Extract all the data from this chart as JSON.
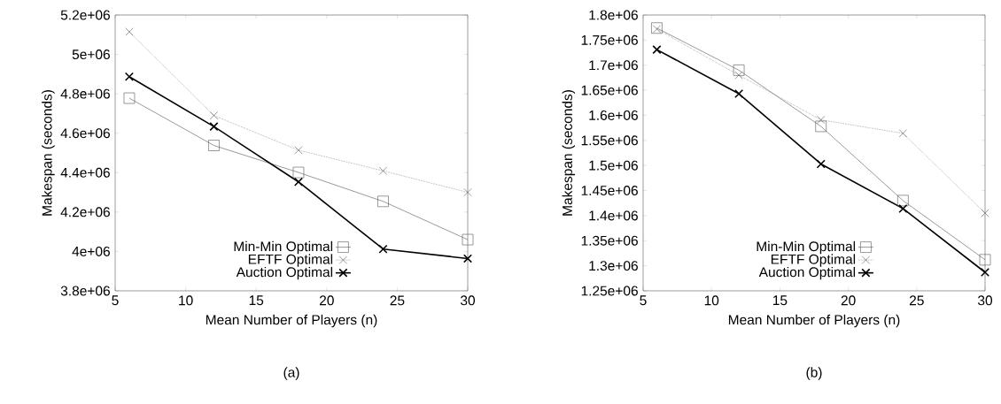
{
  "chart_data": [
    {
      "type": "line",
      "xlabel": "Mean Number of Players (n)",
      "ylabel": "Makespan (seconds)",
      "annotations": [
        "(a)"
      ],
      "x": [
        6,
        12,
        18,
        24,
        30
      ],
      "xlim": [
        5,
        30
      ],
      "xticks": [
        5,
        10,
        15,
        20,
        25,
        30
      ],
      "ylim": [
        3800000,
        5200000
      ],
      "yticks": [
        {
          "value": 3800000,
          "label": "3.8e+06"
        },
        {
          "value": 4000000,
          "label": "4e+06"
        },
        {
          "value": 4200000,
          "label": "4.2e+06"
        },
        {
          "value": 4400000,
          "label": "4.4e+06"
        },
        {
          "value": 4600000,
          "label": "4.6e+06"
        },
        {
          "value": 4800000,
          "label": "4.8e+06"
        },
        {
          "value": 5000000,
          "label": "5e+06"
        },
        {
          "value": 5200000,
          "label": "5.2e+06"
        }
      ],
      "legend": "bottom",
      "grid": false,
      "series": [
        {
          "name": "Min-Min Optimal",
          "color": "#555555",
          "marker": "square",
          "line_style": "solid",
          "values": [
            4778000,
            4538000,
            4401000,
            4254000,
            4060000
          ]
        },
        {
          "name": "EFTF Optimal",
          "color": "#555555",
          "marker": "cross",
          "line_style": "dotted",
          "values": [
            5115000,
            4690000,
            4514000,
            4409000,
            4300000
          ]
        },
        {
          "name": "Auction Optimal",
          "color": "#000000",
          "marker": "cross",
          "line_style": "solid",
          "values": [
            4887000,
            4634000,
            4353000,
            4012000,
            3964000
          ]
        }
      ]
    },
    {
      "type": "line",
      "xlabel": "Mean Number of Players (n)",
      "ylabel": "Makespan (seconds)",
      "annotations": [
        "(b)"
      ],
      "x": [
        6,
        12,
        18,
        24,
        30
      ],
      "xlim": [
        5,
        30
      ],
      "xticks": [
        5,
        10,
        15,
        20,
        25,
        30
      ],
      "ylim": [
        1250000,
        1800000
      ],
      "yticks": [
        {
          "value": 1250000,
          "label": "1.25e+06"
        },
        {
          "value": 1300000,
          "label": "1.3e+06"
        },
        {
          "value": 1350000,
          "label": "1.35e+06"
        },
        {
          "value": 1400000,
          "label": "1.4e+06"
        },
        {
          "value": 1450000,
          "label": "1.45e+06"
        },
        {
          "value": 1500000,
          "label": "1.5e+06"
        },
        {
          "value": 1550000,
          "label": "1.55e+06"
        },
        {
          "value": 1600000,
          "label": "1.6e+06"
        },
        {
          "value": 1650000,
          "label": "1.65e+06"
        },
        {
          "value": 1700000,
          "label": "1.7e+06"
        },
        {
          "value": 1750000,
          "label": "1.75e+06"
        },
        {
          "value": 1800000,
          "label": "1.8e+06"
        }
      ],
      "legend": "bottom",
      "grid": false,
      "series": [
        {
          "name": "Min-Min Optimal",
          "color": "#555555",
          "marker": "square",
          "line_style": "solid",
          "values": [
            1774000,
            1690000,
            1578000,
            1430000,
            1312000
          ]
        },
        {
          "name": "EFTF Optimal",
          "color": "#555555",
          "marker": "cross",
          "line_style": "dotted",
          "values": [
            1772000,
            1680000,
            1591000,
            1564000,
            1405000
          ]
        },
        {
          "name": "Auction Optimal",
          "color": "#000000",
          "marker": "cross",
          "line_style": "solid",
          "values": [
            1731000,
            1643000,
            1503000,
            1414000,
            1287000
          ]
        }
      ]
    }
  ]
}
